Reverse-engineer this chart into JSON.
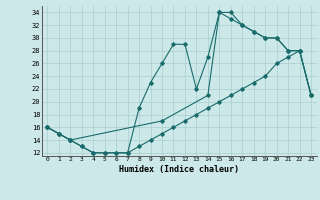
{
  "bg_color": "#cce8e8",
  "line_color": "#1a6b6b",
  "grid_color": "#aacece",
  "xlabel": "Humidex (Indice chaleur)",
  "xlim": [
    -0.5,
    23.5
  ],
  "ylim": [
    11.5,
    35.0
  ],
  "yticks": [
    12,
    14,
    16,
    18,
    20,
    22,
    24,
    26,
    28,
    30,
    32,
    34
  ],
  "xticks": [
    0,
    1,
    2,
    3,
    4,
    5,
    6,
    7,
    8,
    9,
    10,
    11,
    12,
    13,
    14,
    15,
    16,
    17,
    18,
    19,
    20,
    21,
    22,
    23
  ],
  "line1_x": [
    0,
    1,
    2,
    3,
    4,
    5,
    6,
    7,
    8,
    9,
    10,
    11,
    12,
    13,
    14,
    15,
    16,
    17,
    18,
    19,
    20,
    21,
    22,
    23
  ],
  "line1_y": [
    16,
    15,
    14,
    13,
    12,
    12,
    12,
    12,
    13,
    14,
    15,
    16,
    17,
    18,
    19,
    20,
    21,
    22,
    23,
    24,
    26,
    27,
    28,
    21
  ],
  "line2_x": [
    0,
    1,
    2,
    3,
    4,
    5,
    6,
    7,
    8,
    9,
    10,
    11,
    12,
    13,
    14,
    15,
    16,
    17,
    18,
    19,
    20,
    21,
    22,
    23
  ],
  "line2_y": [
    16,
    15,
    14,
    13,
    12,
    12,
    12,
    12,
    19,
    23,
    26,
    29,
    29,
    22,
    27,
    34,
    33,
    32,
    31,
    30,
    30,
    28,
    28,
    21
  ],
  "line3_x": [
    0,
    1,
    2,
    10,
    14,
    15,
    16,
    17,
    18,
    19,
    20,
    21,
    22,
    23
  ],
  "line3_y": [
    16,
    15,
    14,
    17,
    21,
    34,
    34,
    32,
    31,
    30,
    30,
    28,
    28,
    21
  ]
}
